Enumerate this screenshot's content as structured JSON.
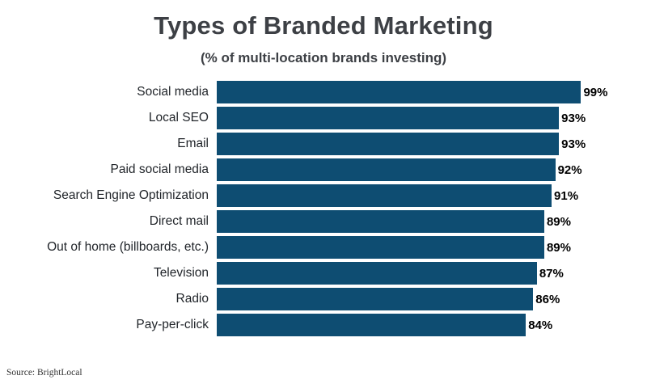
{
  "chart_data": {
    "type": "bar",
    "orientation": "horizontal",
    "title": "Types of Branded Marketing",
    "subtitle": "(% of multi-location brands investing)",
    "categories": [
      "Social media",
      "Local SEO",
      "Email",
      "Paid social media",
      "Search Engine Optimization",
      "Direct mail",
      "Out of home (billboards, etc.)",
      "Television",
      "Radio",
      "Pay-per-click"
    ],
    "values": [
      99,
      93,
      93,
      92,
      91,
      89,
      89,
      87,
      86,
      84
    ],
    "value_labels": [
      "99%",
      "93%",
      "93%",
      "92%",
      "91%",
      "89%",
      "89%",
      "87%",
      "86%",
      "84%"
    ],
    "xlim": [
      0,
      100
    ],
    "grid": false,
    "legend": "none",
    "bar_color": "#0e4d72",
    "title_color": "#3d4045",
    "value_label_color": "#000000"
  },
  "source": {
    "label": "Source: BrightLocal"
  }
}
